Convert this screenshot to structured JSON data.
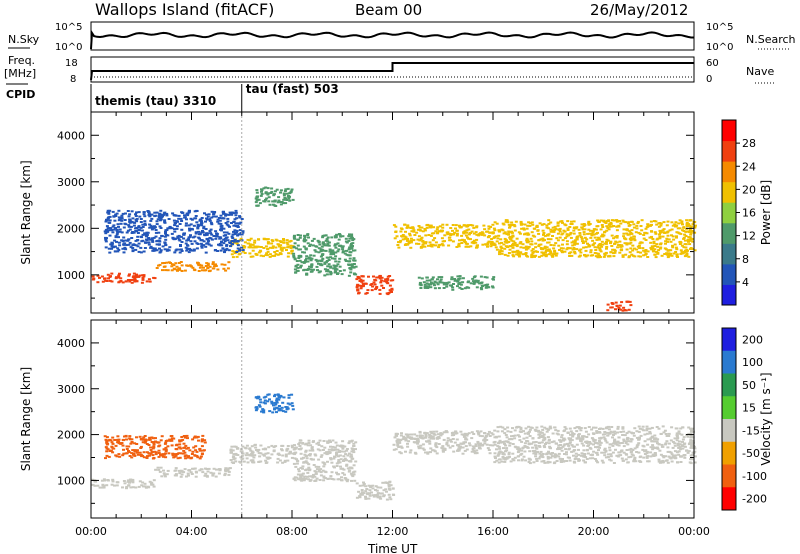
{
  "header": {
    "site": "Wallops Island (fitACF)",
    "beam": "Beam 00",
    "date": "26/May/2012"
  },
  "summary": {
    "nsky_label": "N.Sky",
    "nsky_ticks": [
      "10^5",
      "10^0"
    ],
    "nsearch_label": "N.Search",
    "nsearch_ticks": [
      "10^5",
      "10^0"
    ],
    "freq_label_1": "Freq.",
    "freq_label_2": "[MHz]",
    "freq_ticks": [
      "18",
      "8"
    ],
    "nave_label": "Nave",
    "nave_ticks": [
      "60",
      "0"
    ],
    "freq_step_hours": 12,
    "cpid_label": "CPID",
    "modes": [
      {
        "name": "themis (tau) 3310",
        "start_hour": 0
      },
      {
        "name": "tau (fast) 503",
        "start_hour": 6
      }
    ]
  },
  "chart_data": [
    {
      "type": "heatmap",
      "panel": "power",
      "ylabel": "Slant Range [km]",
      "xlabel": "",
      "x_ticks": [
        "00:00",
        "04:00",
        "08:00",
        "12:00",
        "16:00",
        "20:00",
        "00:00"
      ],
      "x_range_hours": [
        0,
        24
      ],
      "y_range_km": [
        180,
        4500
      ],
      "y_ticks": [
        1000,
        2000,
        3000,
        4000
      ],
      "colorbar_label": "Power [dB]",
      "colorbar_ticks": [
        4,
        8,
        12,
        16,
        20,
        24,
        28
      ],
      "colorbar_range": [
        0,
        32
      ],
      "colorbar_colors": [
        "#1f1fe0",
        "#2255b8",
        "#3a7a8a",
        "#4f9a6a",
        "#8fcf40",
        "#f0c000",
        "#f58a00",
        "#f04010",
        "#ff0000"
      ],
      "bands": [
        {
          "t0": 0,
          "t1": 2.5,
          "r0": 850,
          "r1": 1050,
          "power": 26
        },
        {
          "t0": 2.5,
          "t1": 5.5,
          "r0": 1100,
          "r1": 1300,
          "power": 24
        },
        {
          "t0": 5.5,
          "t1": 8.0,
          "r0": 1400,
          "r1": 1800,
          "power": 18
        },
        {
          "t0": 8.0,
          "t1": 10.5,
          "r0": 1000,
          "r1": 1900,
          "power": 14
        },
        {
          "t0": 10.5,
          "t1": 12.0,
          "r0": 600,
          "r1": 1000,
          "power": 26
        },
        {
          "t0": 12.0,
          "t1": 16.0,
          "r0": 1600,
          "r1": 2100,
          "power": 18
        },
        {
          "t0": 13.0,
          "t1": 16.0,
          "r0": 700,
          "r1": 1000,
          "power": 14
        },
        {
          "t0": 16.0,
          "t1": 24.0,
          "r0": 1400,
          "r1": 2200,
          "power": 20
        },
        {
          "t0": 0.5,
          "t1": 6.0,
          "r0": 1500,
          "r1": 2400,
          "power": 6
        },
        {
          "t0": 6.5,
          "t1": 8.0,
          "r0": 2500,
          "r1": 2900,
          "power": 14
        },
        {
          "t0": 20.5,
          "t1": 21.5,
          "r0": 250,
          "r1": 450,
          "power": 28
        }
      ]
    },
    {
      "type": "heatmap",
      "panel": "velocity",
      "ylabel": "Slant Range [km]",
      "xlabel": "Time UT",
      "x_ticks": [
        "00:00",
        "04:00",
        "08:00",
        "12:00",
        "16:00",
        "20:00",
        "00:00"
      ],
      "x_range_hours": [
        0,
        24
      ],
      "y_range_km": [
        180,
        4500
      ],
      "y_ticks": [
        1000,
        2000,
        3000,
        4000
      ],
      "colorbar_label": "Velocity [m s⁻¹]",
      "colorbar_ticks": [
        "200",
        "100",
        "50",
        "15",
        "-15",
        "-50",
        "-100",
        "-200"
      ],
      "colorbar_colors": [
        "#1f1fe0",
        "#2a7ad0",
        "#2a9a50",
        "#55cc30",
        "#c8c8c0",
        "#f0a000",
        "#f06010",
        "#ff0000"
      ],
      "bands": [
        {
          "t0": 0,
          "t1": 2.5,
          "r0": 850,
          "r1": 1050,
          "velocity": 0
        },
        {
          "t0": 2.5,
          "t1": 5.5,
          "r0": 1100,
          "r1": 1300,
          "velocity": 0
        },
        {
          "t0": 5.5,
          "t1": 8.0,
          "r0": 1400,
          "r1": 1800,
          "velocity": 0
        },
        {
          "t0": 8.0,
          "t1": 10.5,
          "r0": 1000,
          "r1": 1900,
          "velocity": 0
        },
        {
          "t0": 10.5,
          "t1": 12.0,
          "r0": 600,
          "r1": 1000,
          "velocity": 0
        },
        {
          "t0": 12.0,
          "t1": 16.0,
          "r0": 1600,
          "r1": 2100,
          "velocity": 0
        },
        {
          "t0": 16.0,
          "t1": 24.0,
          "r0": 1400,
          "r1": 2200,
          "velocity": 0
        },
        {
          "t0": 0.5,
          "t1": 4.5,
          "r0": 1500,
          "r1": 2000,
          "velocity": -60
        },
        {
          "t0": 6.5,
          "t1": 8.0,
          "r0": 2500,
          "r1": 2900,
          "velocity": 80
        }
      ]
    }
  ]
}
